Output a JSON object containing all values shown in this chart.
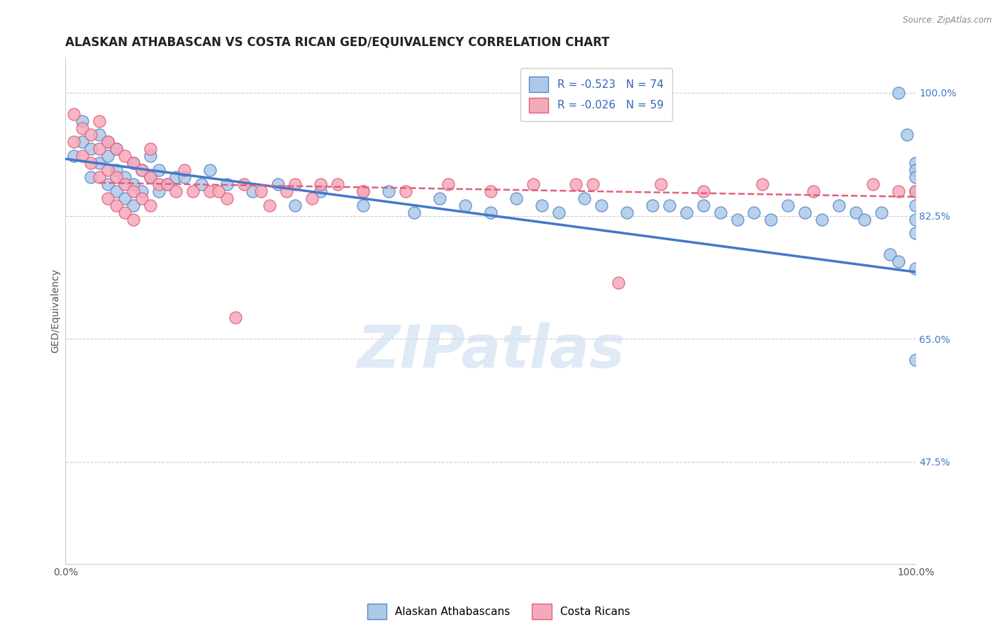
{
  "title": "ALASKAN ATHABASCAN VS COSTA RICAN GED/EQUIVALENCY CORRELATION CHART",
  "source": "Source: ZipAtlas.com",
  "ylabel": "GED/Equivalency",
  "xlim": [
    0.0,
    1.0
  ],
  "ylim": [
    0.33,
    1.05
  ],
  "yticks": [
    0.475,
    0.65,
    0.825,
    1.0
  ],
  "ytick_labels": [
    "47.5%",
    "65.0%",
    "82.5%",
    "100.0%"
  ],
  "xticks": [
    0.0,
    1.0
  ],
  "xtick_labels": [
    "0.0%",
    "100.0%"
  ],
  "legend_blue_r": "R = ",
  "legend_blue_rv": "-0.523",
  "legend_blue_n": "  N = ",
  "legend_blue_nv": "74",
  "legend_pink_r": "R = ",
  "legend_pink_rv": "-0.026",
  "legend_pink_n": "  N = ",
  "legend_pink_nv": "59",
  "blue_fill": "#adc9e8",
  "blue_edge": "#5588cc",
  "pink_fill": "#f5aabb",
  "pink_edge": "#e0607a",
  "blue_line_color": "#4477cc",
  "pink_line_color": "#e06080",
  "watermark": "ZIPatlas",
  "blue_scatter_x": [
    0.01,
    0.02,
    0.02,
    0.03,
    0.03,
    0.04,
    0.04,
    0.05,
    0.05,
    0.05,
    0.06,
    0.06,
    0.06,
    0.07,
    0.07,
    0.08,
    0.08,
    0.08,
    0.09,
    0.09,
    0.1,
    0.1,
    0.11,
    0.11,
    0.12,
    0.13,
    0.14,
    0.16,
    0.17,
    0.19,
    0.22,
    0.25,
    0.27,
    0.3,
    0.35,
    0.38,
    0.41,
    0.44,
    0.47,
    0.5,
    0.53,
    0.56,
    0.58,
    0.61,
    0.63,
    0.66,
    0.69,
    0.71,
    0.73,
    0.75,
    0.77,
    0.79,
    0.81,
    0.83,
    0.85,
    0.87,
    0.89,
    0.91,
    0.93,
    0.94,
    0.96,
    0.97,
    0.98,
    0.98,
    0.99,
    1.0,
    1.0,
    1.0,
    1.0,
    1.0,
    1.0,
    1.0,
    1.0,
    1.0
  ],
  "blue_scatter_y": [
    0.91,
    0.93,
    0.96,
    0.92,
    0.88,
    0.9,
    0.94,
    0.91,
    0.87,
    0.93,
    0.89,
    0.86,
    0.92,
    0.88,
    0.85,
    0.9,
    0.87,
    0.84,
    0.89,
    0.86,
    0.91,
    0.88,
    0.89,
    0.86,
    0.87,
    0.88,
    0.88,
    0.87,
    0.89,
    0.87,
    0.86,
    0.87,
    0.84,
    0.86,
    0.84,
    0.86,
    0.83,
    0.85,
    0.84,
    0.83,
    0.85,
    0.84,
    0.83,
    0.85,
    0.84,
    0.83,
    0.84,
    0.84,
    0.83,
    0.84,
    0.83,
    0.82,
    0.83,
    0.82,
    0.84,
    0.83,
    0.82,
    0.84,
    0.83,
    0.82,
    0.83,
    0.77,
    0.76,
    1.0,
    0.94,
    0.9,
    0.89,
    0.88,
    0.86,
    0.84,
    0.82,
    0.8,
    0.62,
    0.75
  ],
  "pink_scatter_x": [
    0.01,
    0.01,
    0.02,
    0.02,
    0.03,
    0.03,
    0.04,
    0.04,
    0.04,
    0.05,
    0.05,
    0.05,
    0.06,
    0.06,
    0.06,
    0.07,
    0.07,
    0.07,
    0.08,
    0.08,
    0.08,
    0.09,
    0.09,
    0.1,
    0.1,
    0.1,
    0.11,
    0.12,
    0.13,
    0.14,
    0.15,
    0.17,
    0.19,
    0.21,
    0.23,
    0.26,
    0.29,
    0.32,
    0.24,
    0.27,
    0.35,
    0.3,
    0.62,
    0.18,
    0.2,
    0.98,
    1.0,
    0.95,
    0.88,
    0.82,
    0.75,
    0.7,
    0.65,
    0.6,
    0.55,
    0.5,
    0.45,
    0.4,
    0.35
  ],
  "pink_scatter_y": [
    0.93,
    0.97,
    0.95,
    0.91,
    0.94,
    0.9,
    0.92,
    0.96,
    0.88,
    0.93,
    0.89,
    0.85,
    0.92,
    0.88,
    0.84,
    0.91,
    0.87,
    0.83,
    0.9,
    0.86,
    0.82,
    0.89,
    0.85,
    0.88,
    0.84,
    0.92,
    0.87,
    0.87,
    0.86,
    0.89,
    0.86,
    0.86,
    0.85,
    0.87,
    0.86,
    0.86,
    0.85,
    0.87,
    0.84,
    0.87,
    0.86,
    0.87,
    0.87,
    0.86,
    0.68,
    0.86,
    0.86,
    0.87,
    0.86,
    0.87,
    0.86,
    0.87,
    0.73,
    0.87,
    0.87,
    0.86,
    0.87,
    0.86,
    0.86
  ],
  "blue_line_x0": 0.0,
  "blue_line_x1": 1.0,
  "blue_line_y0": 0.906,
  "blue_line_y1": 0.745,
  "pink_line_x0": 0.04,
  "pink_line_x1": 1.0,
  "pink_line_y0": 0.872,
  "pink_line_y1": 0.852,
  "background_color": "#ffffff",
  "grid_color": "#cccccc",
  "title_fontsize": 12,
  "tick_fontsize": 10,
  "legend_fontsize": 11,
  "watermark_color": "#ccddf0",
  "watermark_fontsize": 60
}
